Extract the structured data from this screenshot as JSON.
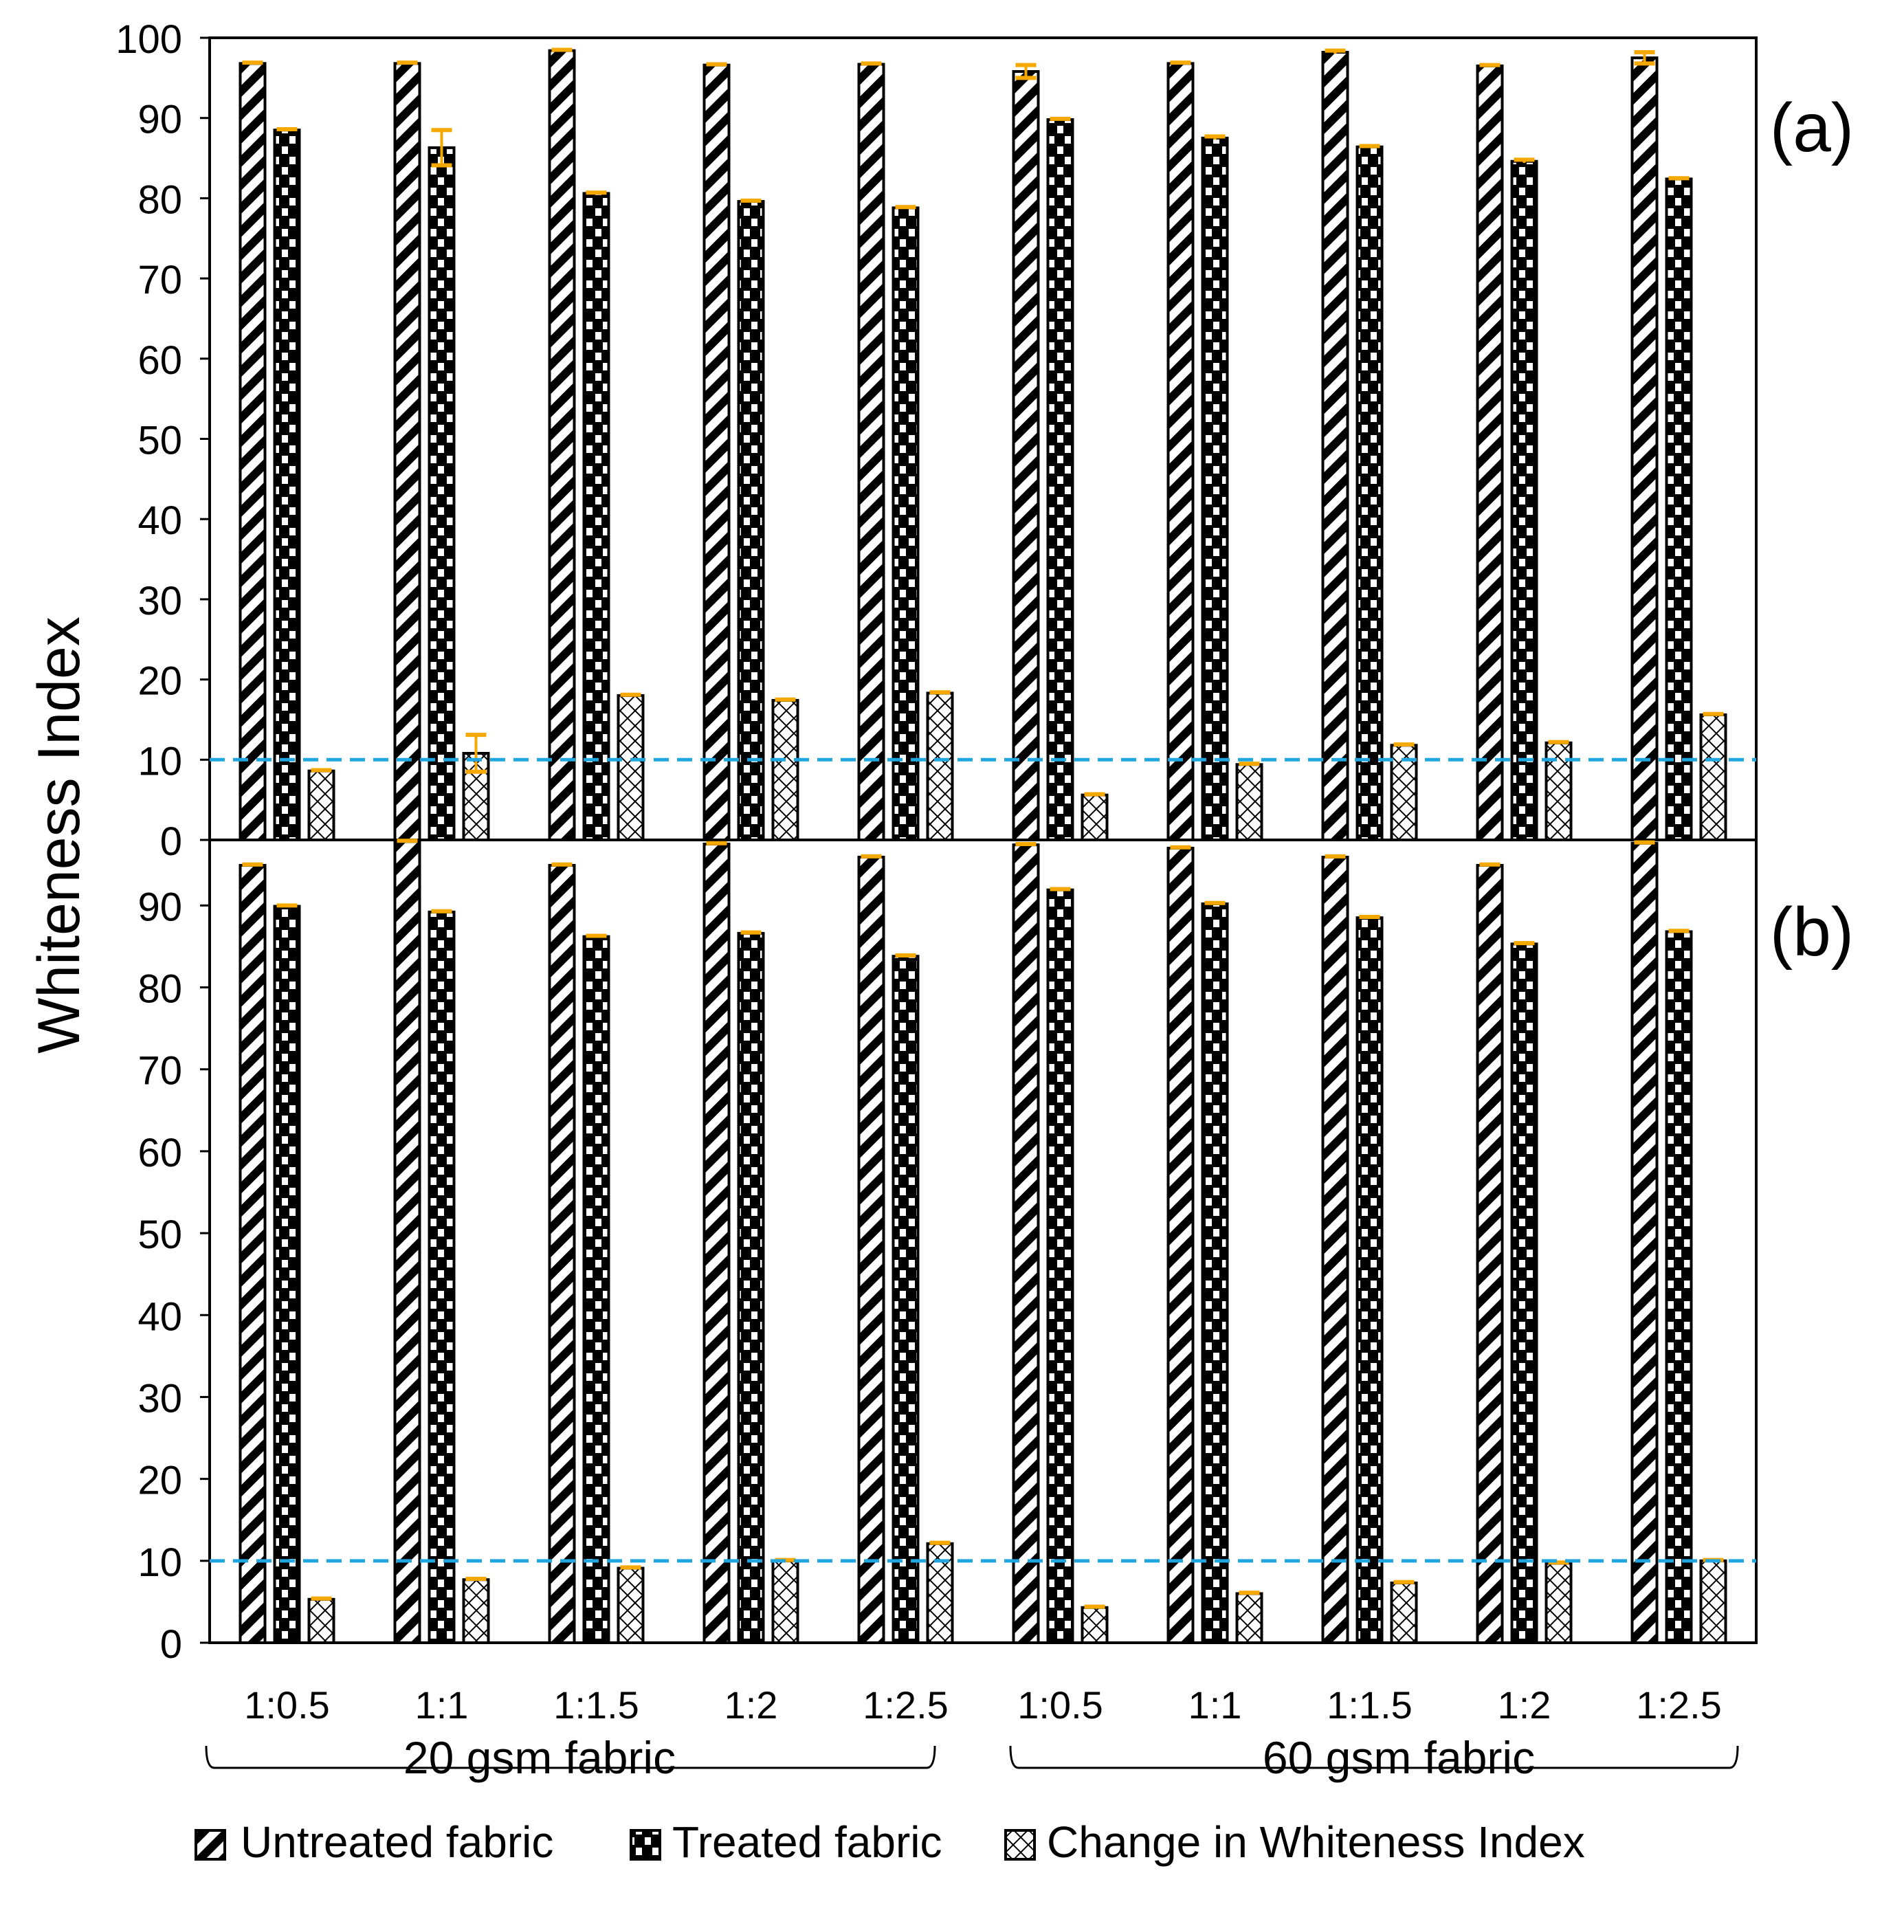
{
  "colors": {
    "axis": "#000000",
    "bar_outline": "#000000",
    "error_bar": "#f5a800",
    "reference_line": "#1fa6e0",
    "background": "#ffffff"
  },
  "chart_data": [
    {
      "type": "bar",
      "panel_label": "(a)",
      "ylabel": "Whiteness Index",
      "ylim": [
        0,
        100
      ],
      "yticks": [
        0,
        10,
        20,
        30,
        40,
        50,
        60,
        70,
        80,
        90,
        100
      ],
      "categories": [
        "1:0.5",
        "1:1",
        "1:1.5",
        "1:2",
        "1:2.5",
        "1:0.5",
        "1:1",
        "1:1.5",
        "1:2",
        "1:2.5"
      ],
      "groups": [
        {
          "label": "20 gsm fabric",
          "categories": [
            "1:0.5",
            "1:1",
            "1:1.5",
            "1:2",
            "1:2.5"
          ]
        },
        {
          "label": "60 gsm fabric",
          "categories": [
            "1:0.5",
            "1:1",
            "1:1.5",
            "1:2",
            "1:2.5"
          ]
        }
      ],
      "reference_line": 10,
      "series": [
        {
          "name": "Untreated fabric",
          "pattern": "diagonal-stripes",
          "values": [
            96.8,
            96.8,
            98.4,
            96.6,
            96.7,
            95.8,
            96.8,
            98.2,
            96.5,
            97.5
          ],
          "errors": [
            0.1,
            0.1,
            0.1,
            0.1,
            0.1,
            0.8,
            0.1,
            0.2,
            0.1,
            0.7
          ]
        },
        {
          "name": "Treated fabric",
          "pattern": "checker-dots",
          "values": [
            88.5,
            86.3,
            80.6,
            79.6,
            78.8,
            89.8,
            87.5,
            86.4,
            84.6,
            82.4
          ],
          "errors": [
            0.1,
            2.2,
            0.1,
            0.1,
            0.1,
            0.1,
            0.2,
            0.1,
            0.2,
            0.1
          ]
        },
        {
          "name": "Change in Whiteness Index",
          "pattern": "cross-hatch",
          "values": [
            8.6,
            10.8,
            18.0,
            17.4,
            18.3,
            5.6,
            9.4,
            11.8,
            12.1,
            15.6
          ],
          "errors": [
            0.1,
            2.3,
            0.1,
            0.1,
            0.1,
            0.1,
            0.1,
            0.1,
            0.1,
            0.1
          ]
        }
      ]
    },
    {
      "type": "bar",
      "panel_label": "(b)",
      "ylabel": "Whiteness Index",
      "ylim": [
        0,
        98
      ],
      "yticks": [
        0,
        10,
        20,
        30,
        40,
        50,
        60,
        70,
        80,
        90
      ],
      "categories": [
        "1:0.5",
        "1:1",
        "1:1.5",
        "1:2",
        "1:2.5",
        "1:0.5",
        "1:1",
        "1:1.5",
        "1:2",
        "1:2.5"
      ],
      "groups": [
        {
          "label": "20 gsm fabric",
          "categories": [
            "1:0.5",
            "1:1",
            "1:1.5",
            "1:2",
            "1:2.5"
          ]
        },
        {
          "label": "60 gsm fabric",
          "categories": [
            "1:0.5",
            "1:1",
            "1:1.5",
            "1:2",
            "1:2.5"
          ]
        }
      ],
      "reference_line": 10,
      "series": [
        {
          "name": "Untreated fabric",
          "pattern": "diagonal-stripes",
          "values": [
            94.9,
            97.8,
            94.9,
            97.5,
            95.9,
            97.4,
            97.0,
            95.9,
            94.9,
            97.6
          ],
          "errors": [
            0.1,
            0.1,
            0.1,
            0.1,
            0.1,
            0.1,
            0.1,
            0.1,
            0.1,
            0.1
          ]
        },
        {
          "name": "Treated fabric",
          "pattern": "checker-dots",
          "values": [
            89.9,
            89.2,
            86.2,
            86.6,
            83.8,
            91.9,
            90.2,
            88.5,
            85.3,
            86.8
          ],
          "errors": [
            0.1,
            0.1,
            0.1,
            0.1,
            0.1,
            0.1,
            0.1,
            0.1,
            0.1,
            0.1
          ]
        },
        {
          "name": "Change in Whiteness Index",
          "pattern": "cross-hatch",
          "values": [
            5.3,
            7.7,
            9.1,
            10.0,
            12.1,
            4.3,
            6.0,
            7.3,
            9.7,
            10.0
          ],
          "errors": [
            0.1,
            0.1,
            0.1,
            0.1,
            0.1,
            0.1,
            0.1,
            0.1,
            0.1,
            0.1
          ]
        }
      ]
    }
  ],
  "legend": {
    "items": [
      "Untreated fabric",
      "Treated fabric",
      "Change in Whiteness Index"
    ]
  }
}
